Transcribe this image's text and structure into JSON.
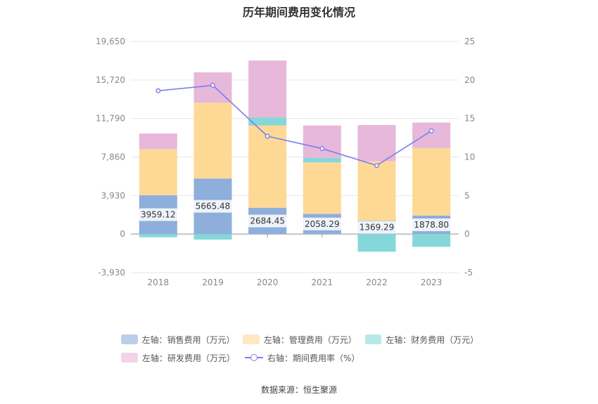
{
  "title": "历年期间费用变化情况",
  "source": "数据来源：恒生聚源",
  "legend": [
    {
      "key": "sales",
      "label": "左轴：销售费用（万元）",
      "color": "#8eaedb",
      "kind": "bar"
    },
    {
      "key": "mgmt",
      "label": "左轴：管理费用（万元）",
      "color": "#fed996",
      "kind": "bar"
    },
    {
      "key": "fin",
      "label": "左轴：财务费用（万元）",
      "color": "#86d7da",
      "kind": "bar"
    },
    {
      "key": "rd",
      "label": "左轴：研发费用（万元）",
      "color": "#e7b8d9",
      "kind": "bar"
    },
    {
      "key": "rate",
      "label": "右轴：期间费用率（%）",
      "color": "#7b7fef",
      "kind": "line"
    }
  ],
  "chart_data": {
    "type": "bar",
    "stacked": true,
    "categories": [
      "2018",
      "2019",
      "2020",
      "2021",
      "2022",
      "2023"
    ],
    "left_axis": {
      "min": -3930,
      "max": 19650,
      "ticks": [
        "-3,930",
        "0",
        "3,930",
        "7,860",
        "11,790",
        "15,720",
        "19,650"
      ]
    },
    "right_axis": {
      "min": -5,
      "max": 25,
      "ticks": [
        "-5",
        "0",
        "5",
        "10",
        "15",
        "20",
        "25"
      ]
    },
    "series": [
      {
        "name": "左轴：销售费用（万元）",
        "key": "sales",
        "values": [
          3959.12,
          5665.48,
          2684.45,
          2058.29,
          1369.29,
          1878.8
        ],
        "labels": [
          "3959.12",
          "5665.48",
          "2684.45",
          "2058.29",
          "1369.29",
          "1878.80"
        ]
      },
      {
        "name": "左轴：管理费用（万元）",
        "key": "mgmt",
        "values": [
          4700,
          7730,
          8400,
          5250,
          6050,
          6900
        ]
      },
      {
        "name": "左轴：财务费用（万元）",
        "key": "fin",
        "values": [
          -320,
          -560,
          820,
          470,
          -1800,
          -1300
        ]
      },
      {
        "name": "左轴：研发费用（万元）",
        "key": "rd",
        "values": [
          1600,
          3100,
          5800,
          3300,
          3700,
          2600
        ]
      },
      {
        "name": "右轴：期间费用率（%）",
        "key": "rate",
        "axis": "right",
        "type": "line",
        "values": [
          18.6,
          19.3,
          12.7,
          11.1,
          8.9,
          13.4
        ]
      }
    ],
    "grid": true,
    "legend_position": "bottom"
  }
}
